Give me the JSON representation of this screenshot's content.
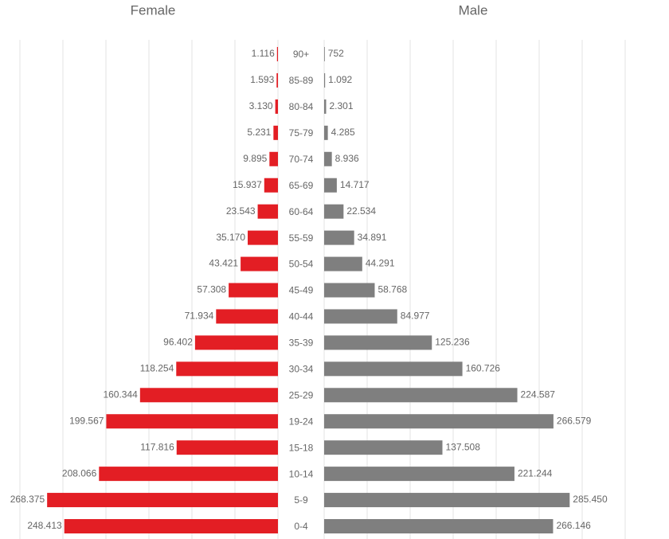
{
  "chart_data": {
    "type": "pyramid",
    "categories": [
      "90+",
      "85-89",
      "80-84",
      "75-79",
      "70-74",
      "65-69",
      "60-64",
      "55-59",
      "50-54",
      "45-49",
      "40-44",
      "35-39",
      "30-34",
      "25-29",
      "19-24",
      "15-18",
      "10-14",
      "5-9",
      "0-4"
    ],
    "xlim": [
      0,
      300000
    ],
    "xticks": [
      0,
      50000,
      100000,
      150000,
      200000,
      250000,
      300000
    ],
    "x2lim": [
      0,
      350000
    ],
    "x2ticks": [
      0,
      50000,
      100000,
      150000,
      200000,
      250000,
      300000,
      350000
    ],
    "grid": true,
    "series": [
      {
        "name": "Female",
        "color": "#e31e24",
        "side": "left",
        "values": [
          1116,
          1593,
          3130,
          5231,
          9895,
          15937,
          23543,
          35170,
          43421,
          57308,
          71934,
          96402,
          118254,
          160344,
          199567,
          117816,
          208066,
          268375,
          248413
        ],
        "value_labels": [
          "1.116",
          "1.593",
          "3.130",
          "5.231",
          "9.895",
          "15.937",
          "23.543",
          "35.170",
          "43.421",
          "57.308",
          "71.934",
          "96.402",
          "118.254",
          "160.344",
          "199.567",
          "117.816",
          "208.066",
          "268.375",
          "248.413"
        ]
      },
      {
        "name": "Male",
        "color": "#7f7f7f",
        "side": "right",
        "axis": "x2",
        "values": [
          752,
          1092,
          2301,
          4285,
          8936,
          14717,
          22534,
          34891,
          44291,
          58768,
          84977,
          125236,
          160726,
          224587,
          266579,
          137508,
          221244,
          285450,
          266146
        ],
        "value_labels": [
          "752",
          "1.092",
          "2.301",
          "4.285",
          "8.936",
          "14.717",
          "22.534",
          "34.891",
          "44.291",
          "58.768",
          "84.977",
          "125.236",
          "160.726",
          "224.587",
          "266.579",
          "137.508",
          "221.244",
          "285.450",
          "266.146"
        ]
      }
    ]
  }
}
